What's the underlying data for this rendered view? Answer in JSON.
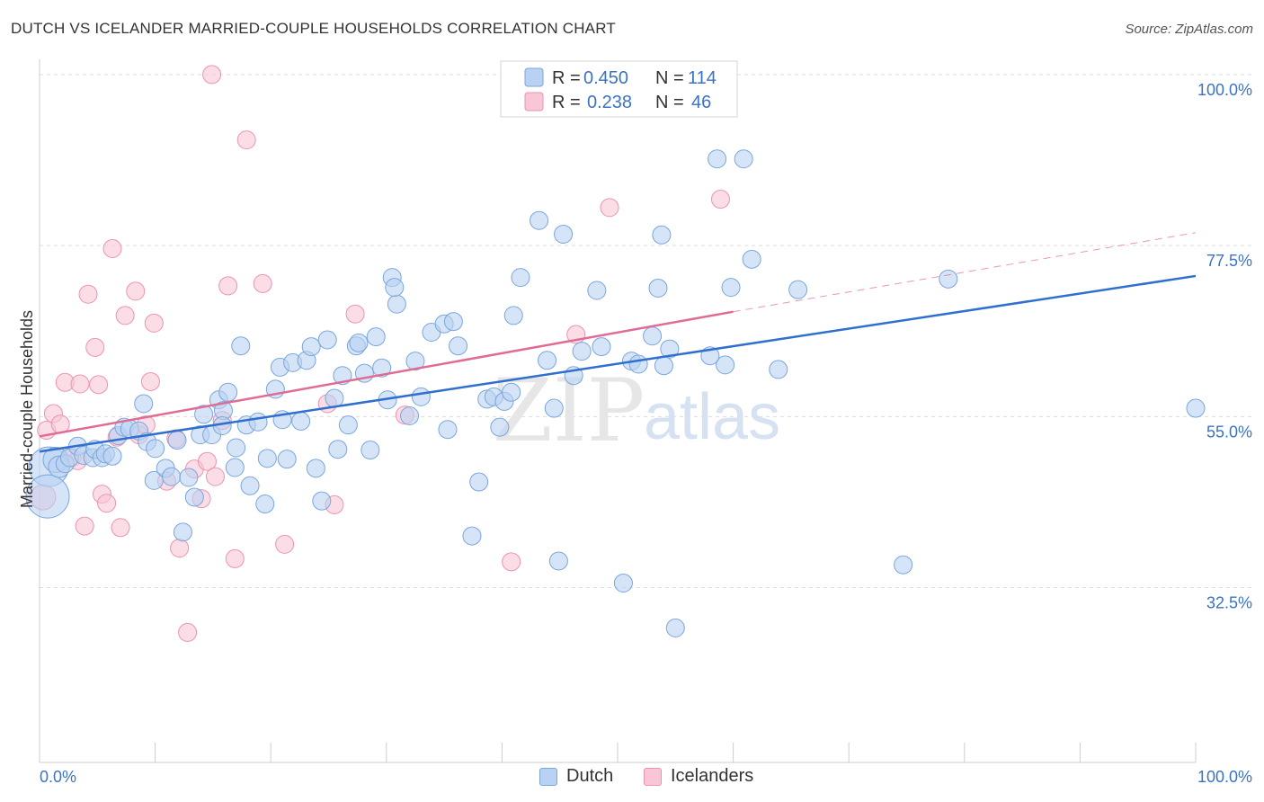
{
  "title": "DUTCH VS ICELANDER MARRIED-COUPLE HOUSEHOLDS CORRELATION CHART",
  "source": "Source: ZipAtlas.com",
  "watermark": {
    "zip": "ZIP",
    "atlas": "atlas"
  },
  "legend_top": [
    {
      "r_label": "R =",
      "r_value": "0.450",
      "n_label": "N =",
      "n_value": "114"
    },
    {
      "r_label": "R =",
      "r_value": "0.238",
      "n_label": "N =",
      "n_value": "46"
    }
  ],
  "legend_bottom": [
    {
      "label": "Dutch"
    },
    {
      "label": "Icelanders"
    }
  ],
  "colors": {
    "dutch_fill": "#b9d2f2",
    "dutch_stroke": "#7aa6dc",
    "dutch_line": "#2f6fce",
    "ice_fill": "#f8c6d6",
    "ice_stroke": "#ec93b1",
    "ice_line": "#e06b95",
    "grid": "#dddddd",
    "axis_text": "#3b73c4"
  },
  "chart_data": {
    "type": "scatter",
    "title": "DUTCH VS ICELANDER MARRIED-COUPLE HOUSEHOLDS CORRELATION CHART",
    "xlabel": "",
    "ylabel": "Married-couple Households",
    "xlim": [
      0,
      100
    ],
    "ylim": [
      9.5,
      102
    ],
    "x_tick_labels": [
      "0.0%",
      "100.0%"
    ],
    "y_ticks": [
      32.5,
      55.0,
      77.5,
      100.0
    ],
    "y_tick_labels": [
      "32.5%",
      "55.0%",
      "77.5%",
      "100.0%"
    ],
    "grid": true,
    "series": [
      {
        "name": "Dutch",
        "trend": {
          "x0": 0,
          "y0": 50.4,
          "x1": 100,
          "y1": 73.5
        },
        "points": [
          [
            0.8,
            48.4,
            2.2
          ],
          [
            0.7,
            44.5,
            2.4
          ],
          [
            1.4,
            49.3,
            1.4
          ],
          [
            1.7,
            48.4,
            1.2
          ],
          [
            2.2,
            48.8,
            1.0
          ],
          [
            2.6,
            49.6,
            1.0
          ],
          [
            3.3,
            51.1,
            1.0
          ],
          [
            3.8,
            49.9,
            1.0
          ],
          [
            4.6,
            49.6,
            1.0
          ],
          [
            4.8,
            50.7,
            1.0
          ],
          [
            5.4,
            49.6,
            1.0
          ],
          [
            5.7,
            50.1,
            1.0
          ],
          [
            6.3,
            49.8,
            1.0
          ],
          [
            6.8,
            52.5,
            1.0
          ],
          [
            7.3,
            53.6,
            1.0
          ],
          [
            7.8,
            53.4,
            1.0
          ],
          [
            8.6,
            53.1,
            1.0
          ],
          [
            9.3,
            51.7,
            1.0
          ],
          [
            10.0,
            50.8,
            1.0
          ],
          [
            9.9,
            46.6,
            1.0
          ],
          [
            10.9,
            48.2,
            1.0
          ],
          [
            11.4,
            47.1,
            1.0
          ],
          [
            11.9,
            51.9,
            1.0
          ],
          [
            12.4,
            39.8,
            1.0
          ],
          [
            12.9,
            47.0,
            1.0
          ],
          [
            13.4,
            44.4,
            1.0
          ],
          [
            13.9,
            52.6,
            1.0
          ],
          [
            14.2,
            55.3,
            1.0
          ],
          [
            14.9,
            52.6,
            1.0
          ],
          [
            15.5,
            57.2,
            1.0
          ],
          [
            15.9,
            55.8,
            1.0
          ],
          [
            16.3,
            58.2,
            1.0
          ],
          [
            16.9,
            48.3,
            1.0
          ],
          [
            17.4,
            64.3,
            1.0
          ],
          [
            17.9,
            53.9,
            1.0
          ],
          [
            18.2,
            45.9,
            1.0
          ],
          [
            18.9,
            54.3,
            1.0
          ],
          [
            19.5,
            43.5,
            1.0
          ],
          [
            19.7,
            49.5,
            1.0
          ],
          [
            20.4,
            58.6,
            1.0
          ],
          [
            20.8,
            61.5,
            1.0
          ],
          [
            21.4,
            49.4,
            1.0
          ],
          [
            21.9,
            62.1,
            1.0
          ],
          [
            22.6,
            54.4,
            1.0
          ],
          [
            23.1,
            62.4,
            1.0
          ],
          [
            23.5,
            64.2,
            1.0
          ],
          [
            23.9,
            48.2,
            1.0
          ],
          [
            24.4,
            43.9,
            1.0
          ],
          [
            24.9,
            65.1,
            1.0
          ],
          [
            25.5,
            57.4,
            1.0
          ],
          [
            25.8,
            50.7,
            1.0
          ],
          [
            26.2,
            60.4,
            1.0
          ],
          [
            26.7,
            53.9,
            1.0
          ],
          [
            27.4,
            64.3,
            1.0
          ],
          [
            27.6,
            64.7,
            1.0
          ],
          [
            28.1,
            60.7,
            1.0
          ],
          [
            28.6,
            50.6,
            1.0
          ],
          [
            29.1,
            65.5,
            1.0
          ],
          [
            29.6,
            61.4,
            1.0
          ],
          [
            30.1,
            57.2,
            1.0
          ],
          [
            30.5,
            73.3,
            1.0
          ],
          [
            30.9,
            69.8,
            1.0
          ],
          [
            32.0,
            55.1,
            1.0
          ],
          [
            32.5,
            62.3,
            1.0
          ],
          [
            33.0,
            57.6,
            1.0
          ],
          [
            33.9,
            66.1,
            1.0
          ],
          [
            35.0,
            67.2,
            1.0
          ],
          [
            35.3,
            53.3,
            1.0
          ],
          [
            35.8,
            67.5,
            1.0
          ],
          [
            36.2,
            64.3,
            1.0
          ],
          [
            37.4,
            39.3,
            1.0
          ],
          [
            38.0,
            46.4,
            1.0
          ],
          [
            38.7,
            57.3,
            1.0
          ],
          [
            39.3,
            57.6,
            1.0
          ],
          [
            39.8,
            53.6,
            1.0
          ],
          [
            40.2,
            57.0,
            1.0
          ],
          [
            40.8,
            58.2,
            1.0
          ],
          [
            41.0,
            68.3,
            1.0
          ],
          [
            41.6,
            73.3,
            1.0
          ],
          [
            42.5,
            98.0,
            1.0
          ],
          [
            43.2,
            80.8,
            1.0
          ],
          [
            43.9,
            62.4,
            1.0
          ],
          [
            44.5,
            56.1,
            1.0
          ],
          [
            44.9,
            36.0,
            1.0
          ],
          [
            45.3,
            79.0,
            1.0
          ],
          [
            46.2,
            60.4,
            1.0
          ],
          [
            46.9,
            63.6,
            1.0
          ],
          [
            48.2,
            71.6,
            1.0
          ],
          [
            48.6,
            64.2,
            1.0
          ],
          [
            50.5,
            33.1,
            1.0
          ],
          [
            51.2,
            62.3,
            1.0
          ],
          [
            51.8,
            61.9,
            1.0
          ],
          [
            53.0,
            65.6,
            1.0
          ],
          [
            53.5,
            71.9,
            1.0
          ],
          [
            53.8,
            78.9,
            1.0
          ],
          [
            54.0,
            61.7,
            1.0
          ],
          [
            54.5,
            63.9,
            1.0
          ],
          [
            58.6,
            88.9,
            1.0
          ],
          [
            59.3,
            61.8,
            1.0
          ],
          [
            59.8,
            72.0,
            1.0
          ],
          [
            60.9,
            88.9,
            1.0
          ],
          [
            61.6,
            75.7,
            1.0
          ],
          [
            63.9,
            61.2,
            1.0
          ],
          [
            65.6,
            71.7,
            1.0
          ],
          [
            74.7,
            35.5,
            1.0
          ],
          [
            78.6,
            73.1,
            1.0
          ],
          [
            100.0,
            56.1,
            1.0
          ],
          [
            55.0,
            27.2,
            1.0
          ],
          [
            58.0,
            63.0,
            1.0
          ],
          [
            21.0,
            54.6,
            1.0
          ],
          [
            15.8,
            53.8,
            1.0
          ],
          [
            17.0,
            50.9,
            1.0
          ],
          [
            9.0,
            56.7,
            1.0
          ],
          [
            30.7,
            72.0,
            1.0
          ]
        ]
      },
      {
        "name": "Icelanders",
        "trend": {
          "x0": 0,
          "y0": 52.4,
          "x1": 60,
          "y1": 68.8,
          "dash_to_x": 100,
          "dash_to_y": 79.2
        },
        "points": [
          [
            0.3,
            44.4,
            1.4
          ],
          [
            0.6,
            53.2,
            1.0
          ],
          [
            1.2,
            55.4,
            1.0
          ],
          [
            1.8,
            54.0,
            1.0
          ],
          [
            2.2,
            59.5,
            1.0
          ],
          [
            2.8,
            49.6,
            1.0
          ],
          [
            3.3,
            49.2,
            1.0
          ],
          [
            3.5,
            59.3,
            1.0
          ],
          [
            3.9,
            40.6,
            1.0
          ],
          [
            4.2,
            71.1,
            1.0
          ],
          [
            4.8,
            64.1,
            1.0
          ],
          [
            5.1,
            59.2,
            1.0
          ],
          [
            5.4,
            44.8,
            1.0
          ],
          [
            5.8,
            43.6,
            1.0
          ],
          [
            6.3,
            77.1,
            1.0
          ],
          [
            6.7,
            52.3,
            1.0
          ],
          [
            7.4,
            68.3,
            1.0
          ],
          [
            8.3,
            71.5,
            1.0
          ],
          [
            8.6,
            52.6,
            1.0
          ],
          [
            9.2,
            53.9,
            1.0
          ],
          [
            9.6,
            59.6,
            1.0
          ],
          [
            9.9,
            67.3,
            1.0
          ],
          [
            11.0,
            46.5,
            1.0
          ],
          [
            11.8,
            52.1,
            1.0
          ],
          [
            12.1,
            37.7,
            1.0
          ],
          [
            12.8,
            26.6,
            1.0
          ],
          [
            13.4,
            48.1,
            1.0
          ],
          [
            14.0,
            44.2,
            1.0
          ],
          [
            14.5,
            49.1,
            1.0
          ],
          [
            14.9,
            100.0,
            1.0
          ],
          [
            15.2,
            47.1,
            1.0
          ],
          [
            15.8,
            54.5,
            1.0
          ],
          [
            16.3,
            72.2,
            1.0
          ],
          [
            16.9,
            36.3,
            1.0
          ],
          [
            17.9,
            91.4,
            1.0
          ],
          [
            19.3,
            72.5,
            1.0
          ],
          [
            21.2,
            38.2,
            1.0
          ],
          [
            24.9,
            56.7,
            1.0
          ],
          [
            25.5,
            43.4,
            1.0
          ],
          [
            27.3,
            68.5,
            1.0
          ],
          [
            31.6,
            55.2,
            1.0
          ],
          [
            40.8,
            35.9,
            1.0
          ],
          [
            46.4,
            65.8,
            1.0
          ],
          [
            49.3,
            82.5,
            1.0
          ],
          [
            58.9,
            83.6,
            1.0
          ],
          [
            7.0,
            40.4,
            1.0
          ]
        ]
      }
    ]
  }
}
